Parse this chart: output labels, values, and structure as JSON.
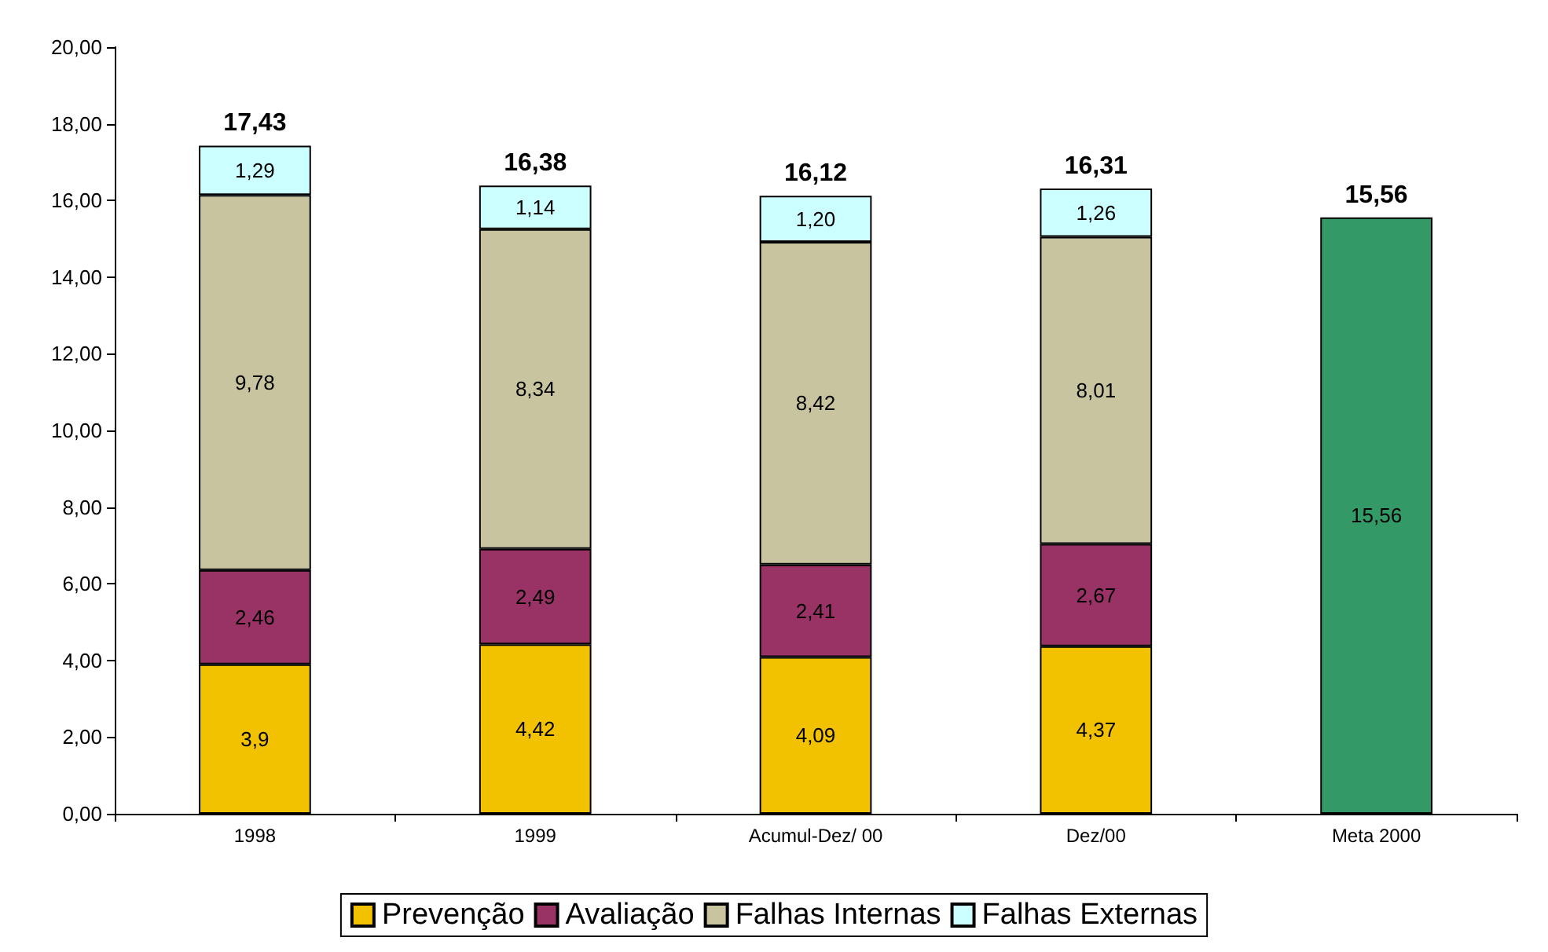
{
  "chart_data": {
    "type": "bar",
    "stacked": true,
    "categories": [
      "1998",
      "1999",
      "Acumul-Dez/ 00",
      "Dez/00",
      "Meta 2000"
    ],
    "series": [
      {
        "name": "Prevenção",
        "color": "#f2c200",
        "values": [
          3.9,
          4.42,
          4.09,
          4.37,
          null
        ],
        "value_labels": [
          "3,9",
          "4,42",
          "4,09",
          "4,37",
          null
        ]
      },
      {
        "name": "Avaliação",
        "color": "#993366",
        "values": [
          2.46,
          2.49,
          2.41,
          2.67,
          null
        ],
        "value_labels": [
          "2,46",
          "2,49",
          "2,41",
          "2,67",
          null
        ]
      },
      {
        "name": "Falhas Internas",
        "color": "#c8c4a0",
        "values": [
          9.78,
          8.34,
          8.42,
          8.01,
          null
        ],
        "value_labels": [
          "9,78",
          "8,34",
          "8,42",
          "8,01",
          null
        ]
      },
      {
        "name": "Falhas Externas",
        "color": "#ccffff",
        "values": [
          1.29,
          1.14,
          1.2,
          1.26,
          null
        ],
        "value_labels": [
          "1,29",
          "1,14",
          "1,20",
          "1,26",
          null
        ]
      },
      {
        "color": "#339966",
        "values": [
          null,
          null,
          null,
          null,
          15.56
        ],
        "value_labels": [
          null,
          null,
          null,
          null,
          "15,56"
        ]
      }
    ],
    "totals": [
      "17,43",
      "16,38",
      "16,12",
      "16,31",
      "15,56"
    ],
    "ylim": [
      0,
      20
    ],
    "yticks": [
      {
        "value": 0,
        "label": "0,00"
      },
      {
        "value": 2,
        "label": "2,00"
      },
      {
        "value": 4,
        "label": "4,00"
      },
      {
        "value": 6,
        "label": "6,00"
      },
      {
        "value": 8,
        "label": "8,00"
      },
      {
        "value": 10,
        "label": "10,00"
      },
      {
        "value": 12,
        "label": "12,00"
      },
      {
        "value": 14,
        "label": "14,00"
      },
      {
        "value": 16,
        "label": "16,00"
      },
      {
        "value": 18,
        "label": "18,00"
      },
      {
        "value": 20,
        "label": "20,00"
      }
    ],
    "grid": false,
    "legend": "bottom"
  }
}
